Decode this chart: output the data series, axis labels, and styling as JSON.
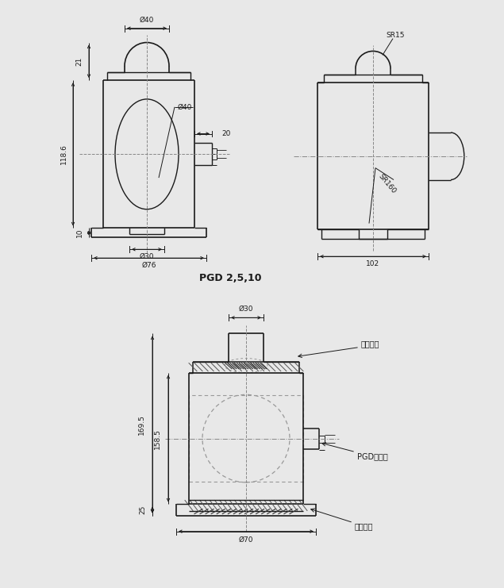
{
  "bg_color": "#e8e8e8",
  "panel_bg": "#ffffff",
  "line_color": "#1a1a1a",
  "dim_color": "#1a1a1a",
  "gray_fill": "#d0d0d0",
  "top_panel": {
    "title": "PGD 2,5,10",
    "left_view": {
      "dims": {
        "d40_top": "Ø40",
        "d40_circle": "Ø40",
        "d30": "Ø30",
        "d76": "Ø76",
        "h21": "21",
        "h118_6": "118.6",
        "h10": "10",
        "w20": "20"
      }
    },
    "right_view": {
      "dims": {
        "sr15": "SR15",
        "sr160": "SR160",
        "w102": "102"
      }
    }
  },
  "bottom_panel": {
    "dims": {
      "d30": "Ø30",
      "d70": "Ø70",
      "h169_5": "169.5",
      "h158_5": "158.5",
      "h25": "25"
    },
    "labels": {
      "upper": "上承压头",
      "sensor": "PGD传感器",
      "lower": "下承压头"
    }
  }
}
